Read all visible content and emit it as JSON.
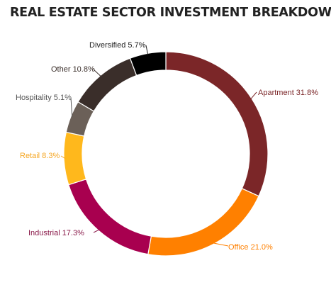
{
  "chart_data": {
    "type": "pie",
    "title": "REAL ESTATE SECTOR INVESTMENT BREAKDOWN",
    "donut": true,
    "legend": "none",
    "slices": [
      {
        "label": "Apartment 31.8%",
        "name": "Apartment",
        "value": 31.8,
        "color": "#7b2628",
        "label_color": "#7b2628"
      },
      {
        "label": "Office 21.0%",
        "name": "Office",
        "value": 21.0,
        "color": "#ff8000",
        "label_color": "#ff8000"
      },
      {
        "label": "Industrial 17.3%",
        "name": "Industrial",
        "value": 17.3,
        "color": "#a8004f",
        "label_color": "#8a1a4a"
      },
      {
        "label": "Retail 8.3%",
        "name": "Retail",
        "value": 8.3,
        "color": "#ffb81c",
        "label_color": "#f5a623"
      },
      {
        "label": "Hospitality 5.1%",
        "name": "Hospitality",
        "value": 5.1,
        "color": "#6b6058",
        "label_color": "#555555"
      },
      {
        "label": "Other 10.8%",
        "name": "Other",
        "value": 10.8,
        "color": "#3a2e2a",
        "label_color": "#3a2e2a"
      },
      {
        "label": "Diversified 5.7%",
        "name": "Diversified",
        "value": 5.7,
        "color": "#000000",
        "label_color": "#222222"
      }
    ]
  }
}
